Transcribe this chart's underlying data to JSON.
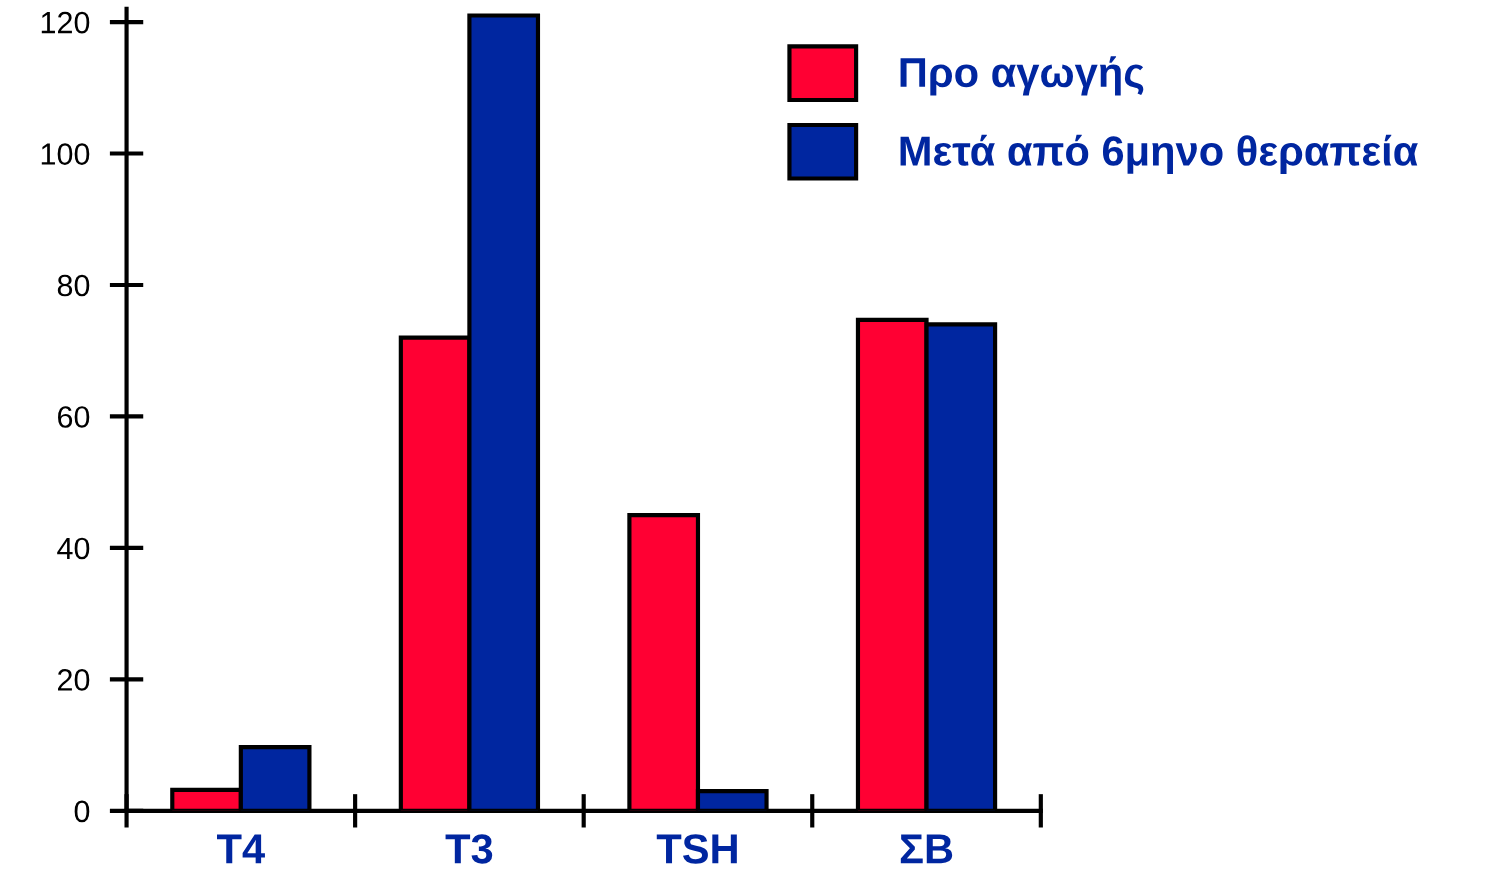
{
  "chart_data": {
    "type": "bar",
    "categories": [
      "T4",
      "T3",
      "TSH",
      "ΣΒ"
    ],
    "series": [
      {
        "name": "Προ αγωγής",
        "color": "#ff0033",
        "values": [
          3.2,
          72,
          45,
          74.7
        ]
      },
      {
        "name": "Μετά από 6μηνο θεραπεία",
        "color": "#0026a0",
        "values": [
          9.7,
          121,
          3,
          74
        ]
      }
    ],
    "ylim": [
      0,
      122
    ],
    "yticks": [
      0,
      20,
      40,
      60,
      80,
      100,
      120
    ],
    "grid": false,
    "legend": "top right"
  }
}
